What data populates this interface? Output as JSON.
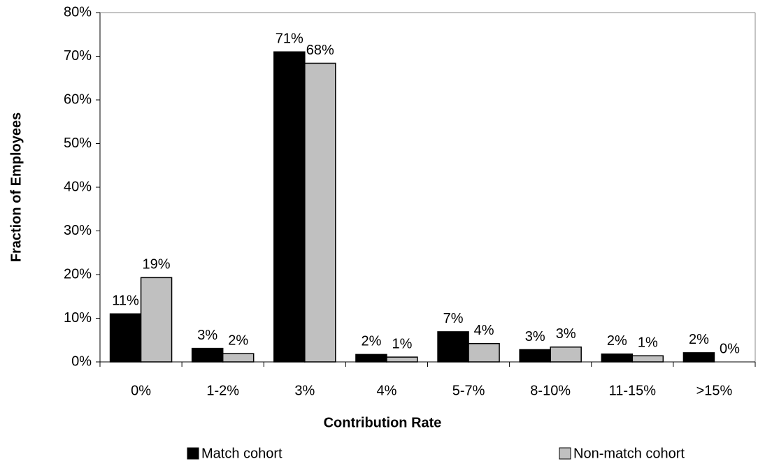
{
  "chart_data": {
    "type": "bar",
    "x_label": "Contribution Rate",
    "y_label": "Fraction of Employees",
    "categories": [
      "0%",
      "1-2%",
      "3%",
      "4%",
      "5-7%",
      "8-10%",
      "11-15%",
      ">15%"
    ],
    "series": [
      {
        "name": "Match cohort",
        "color": "#000000",
        "values": [
          11,
          3.1,
          71,
          1.7,
          6.9,
          2.8,
          1.8,
          2.1
        ],
        "value_labels": [
          "11%",
          "3%",
          "71%",
          "2%",
          "7%",
          "3%",
          "2%",
          "2%"
        ]
      },
      {
        "name": "Non-match cohort",
        "color": "#c0c0c0",
        "values": [
          19.3,
          1.9,
          68.4,
          1.1,
          4.2,
          3.4,
          1.4,
          0
        ],
        "value_labels": [
          "19%",
          "2%",
          "68%",
          "1%",
          "4%",
          "3%",
          "1%",
          "0%"
        ]
      }
    ],
    "ylim": [
      0,
      80
    ],
    "yticks": [
      {
        "value": 0,
        "label": "0%"
      },
      {
        "value": 10,
        "label": "10%"
      },
      {
        "value": 20,
        "label": "20%"
      },
      {
        "value": 30,
        "label": "30%"
      },
      {
        "value": 40,
        "label": "40%"
      },
      {
        "value": 50,
        "label": "50%"
      },
      {
        "value": 60,
        "label": "60%"
      },
      {
        "value": 70,
        "label": "70%"
      },
      {
        "value": 80,
        "label": "80%"
      }
    ],
    "legend": "bottom"
  }
}
